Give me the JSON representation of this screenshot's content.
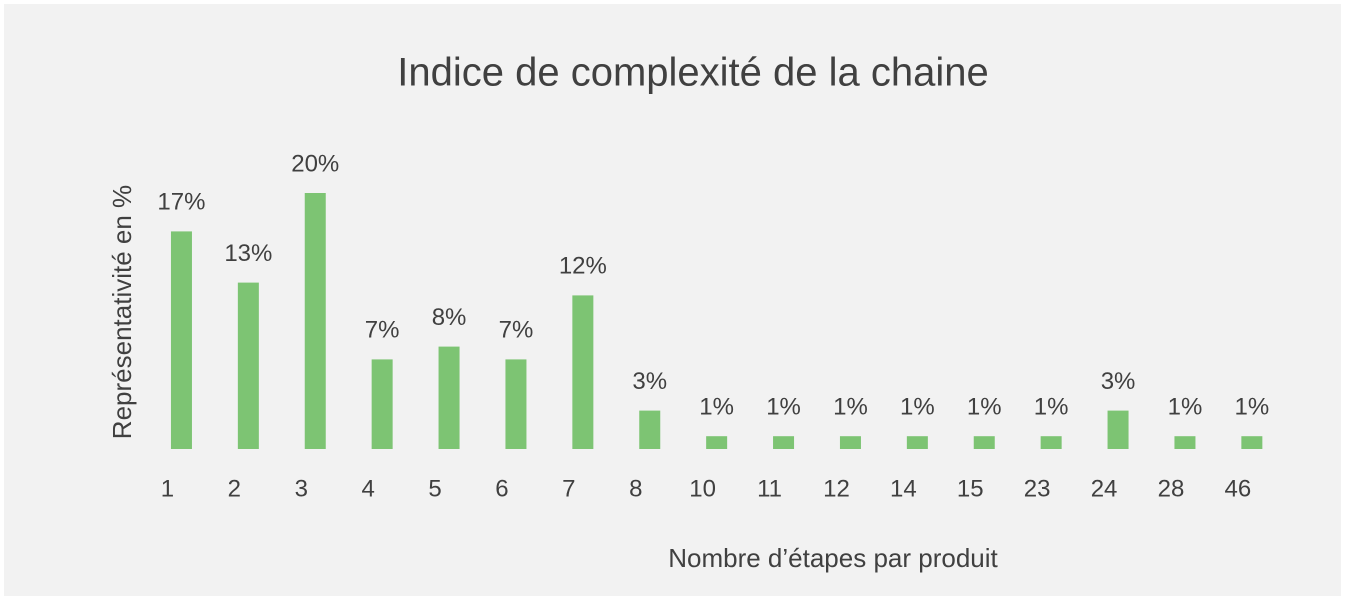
{
  "chart_data": {
    "type": "bar",
    "title": "Indice de complexité de la chaine",
    "x_label": "Nombre d’étapes par produit",
    "y_label": "Représentativité en %",
    "categories": [
      "1",
      "2",
      "3",
      "4",
      "5",
      "6",
      "7",
      "8",
      "10",
      "11",
      "12",
      "14",
      "15",
      "23",
      "24",
      "28",
      "46"
    ],
    "values": [
      17,
      13,
      20,
      7,
      8,
      7,
      12,
      3,
      1,
      1,
      1,
      1,
      1,
      1,
      3,
      1,
      1
    ],
    "value_labels": [
      "17%",
      "13%",
      "20%",
      "7%",
      "8%",
      "7%",
      "12%",
      "3%",
      "1%",
      "1%",
      "1%",
      "1%",
      "1%",
      "1%",
      "3%",
      "1%",
      "1%"
    ],
    "color": "#7dc473"
  }
}
